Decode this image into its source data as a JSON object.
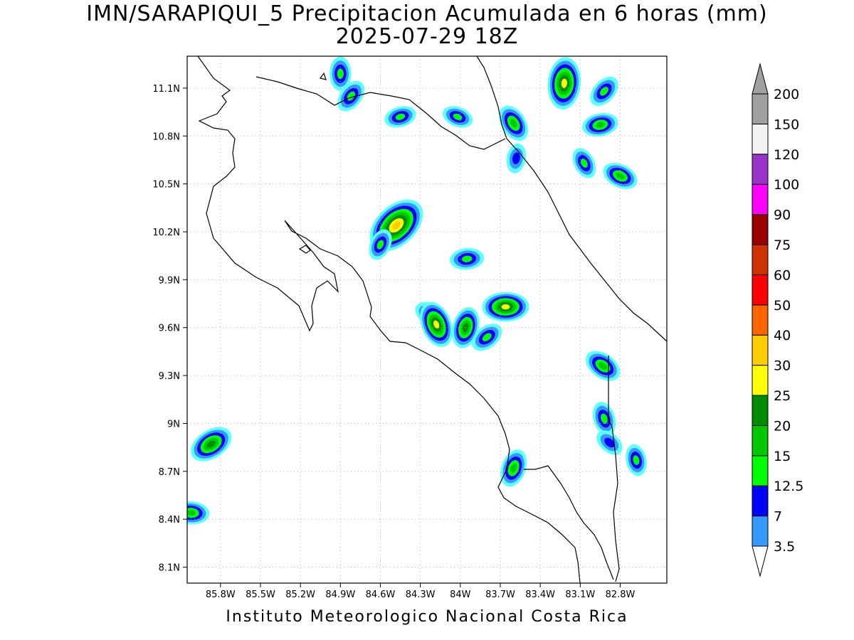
{
  "title": {
    "line1": "IMN/SARAPIQUI_5 Precipitacion Acumulada en 6 horas (mm)",
    "line2": "2025-07-29 18Z"
  },
  "footer": "Instituto Meteorologico Nacional Costa Rica",
  "map_extent": {
    "lon_min": -86.05,
    "lon_max": -82.45,
    "lat_min": 8.0,
    "lat_max": 11.3
  },
  "lat_ticks": [
    "11.1N",
    "10.8N",
    "10.5N",
    "10.2N",
    "9.9N",
    "9.6N",
    "9.3N",
    "9N",
    "8.7N",
    "8.4N",
    "8.1N"
  ],
  "lat_values": [
    11.1,
    10.8,
    10.5,
    10.2,
    9.9,
    9.6,
    9.3,
    9.0,
    8.7,
    8.4,
    8.1
  ],
  "lon_ticks": [
    "85.8W",
    "85.5W",
    "85.2W",
    "84.9W",
    "84.6W",
    "84.3W",
    "84W",
    "83.7W",
    "83.4W",
    "83.1W",
    "82.8W"
  ],
  "lon_values": [
    -85.8,
    -85.5,
    -85.2,
    -84.9,
    -84.6,
    -84.3,
    -84.0,
    -83.7,
    -83.4,
    -83.1,
    -82.8
  ],
  "colorbar": {
    "levels": [
      "3.5",
      "7",
      "12.5",
      "15",
      "20",
      "25",
      "30",
      "40",
      "50",
      "60",
      "75",
      "90",
      "100",
      "120",
      "150",
      "200"
    ],
    "colors": [
      "#5effff",
      "#3399ff",
      "#0000ff",
      "#00ff00",
      "#00c800",
      "#008c00",
      "#ffff00",
      "#ffcc00",
      "#ff6600",
      "#ff0000",
      "#cc3300",
      "#990000",
      "#ff00ff",
      "#9933cc",
      "#f2f2f2",
      "#a0a0a0"
    ]
  },
  "rain_cells": [
    {
      "lon": -84.9,
      "lat": 11.19,
      "mm": 18
    },
    {
      "lon": -84.82,
      "lat": 11.05,
      "mm": 18
    },
    {
      "lon": -84.45,
      "lat": 10.92,
      "mm": 16
    },
    {
      "lon": -84.02,
      "lat": 10.92,
      "mm": 15
    },
    {
      "lon": -83.6,
      "lat": 10.88,
      "mm": 22
    },
    {
      "lon": -83.22,
      "lat": 11.13,
      "mm": 35
    },
    {
      "lon": -82.92,
      "lat": 11.08,
      "mm": 18
    },
    {
      "lon": -82.95,
      "lat": 10.87,
      "mm": 20
    },
    {
      "lon": -82.8,
      "lat": 10.55,
      "mm": 20
    },
    {
      "lon": -83.07,
      "lat": 10.63,
      "mm": 16
    },
    {
      "lon": -83.58,
      "lat": 10.66,
      "mm": 14
    },
    {
      "lon": -84.48,
      "lat": 10.24,
      "mm": 45
    },
    {
      "lon": -83.95,
      "lat": 10.03,
      "mm": 18
    },
    {
      "lon": -84.22,
      "lat": 9.68,
      "mm": 18
    },
    {
      "lon": -84.18,
      "lat": 9.62,
      "mm": 30
    },
    {
      "lon": -83.96,
      "lat": 9.6,
      "mm": 25
    },
    {
      "lon": -83.8,
      "lat": 9.54,
      "mm": 18
    },
    {
      "lon": -83.66,
      "lat": 9.73,
      "mm": 30
    },
    {
      "lon": -82.93,
      "lat": 9.36,
      "mm": 22
    },
    {
      "lon": -82.92,
      "lat": 9.03,
      "mm": 18
    },
    {
      "lon": -83.6,
      "lat": 8.72,
      "mm": 22
    },
    {
      "lon": -85.87,
      "lat": 8.87,
      "mm": 28
    },
    {
      "lon": -86.02,
      "lat": 8.44,
      "mm": 20
    },
    {
      "lon": -82.88,
      "lat": 8.88,
      "mm": 14
    },
    {
      "lon": -82.68,
      "lat": 8.77,
      "mm": 16
    },
    {
      "lon": -84.6,
      "lat": 10.12,
      "mm": 16
    }
  ]
}
